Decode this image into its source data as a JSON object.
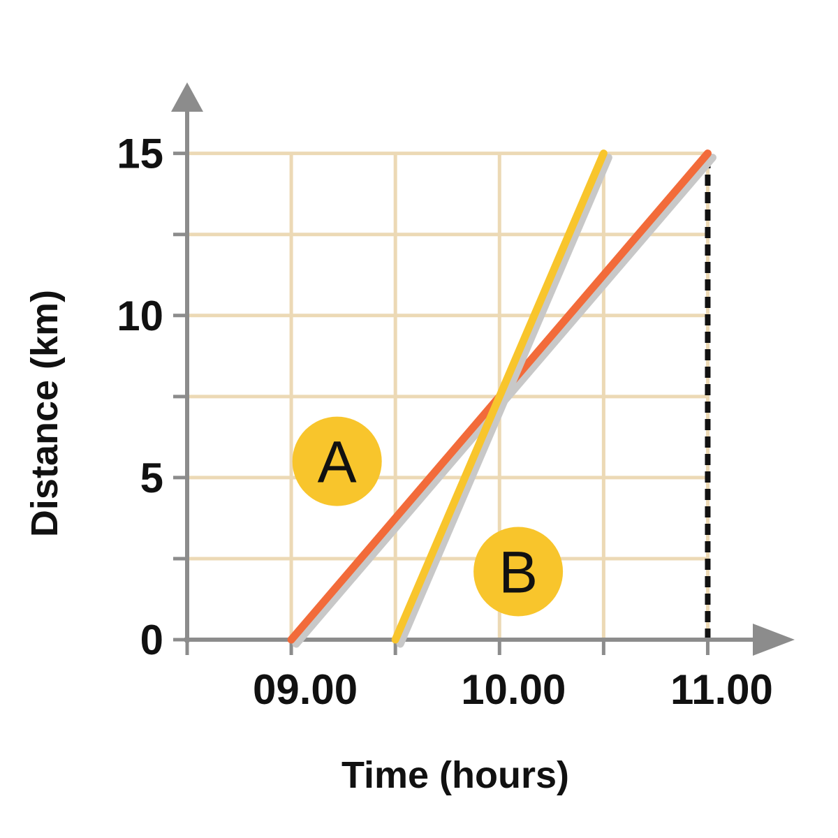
{
  "chart_data": {
    "type": "line",
    "xlabel": "Time (hours)",
    "ylabel": "Distance (km)",
    "x_ticks": [
      "09.00",
      "10.00",
      "11.00"
    ],
    "x_tick_values": [
      9,
      10,
      11
    ],
    "y_ticks": [
      "0",
      "5",
      "10",
      "15"
    ],
    "y_tick_values": [
      0,
      5,
      10,
      15
    ],
    "xlim": [
      8.5,
      11.25
    ],
    "ylim": [
      0,
      16.5
    ],
    "grid": true,
    "grid_x_values": [
      9,
      9.5,
      10,
      10.5,
      11
    ],
    "grid_y_values": [
      2.5,
      5,
      7.5,
      10,
      12.5,
      15
    ],
    "series": [
      {
        "name": "A",
        "color": "#f26b3a",
        "x": [
          9,
          11
        ],
        "y": [
          0,
          15
        ],
        "label_at": [
          9.22,
          5.5
        ]
      },
      {
        "name": "B",
        "color": "#f8c52c",
        "x": [
          9.5,
          10.5
        ],
        "y": [
          0,
          15
        ],
        "label_at": [
          10.09,
          2.1
        ]
      }
    ],
    "reference_lines": [
      {
        "x": 11,
        "y": [
          0,
          15
        ],
        "style": "dashed",
        "color": "#111111"
      }
    ],
    "colors": {
      "grid": "#ecd9b5",
      "axis": "#8c8c8c",
      "badge": "#f8c52c",
      "shadow": "#c8c8c8"
    }
  }
}
